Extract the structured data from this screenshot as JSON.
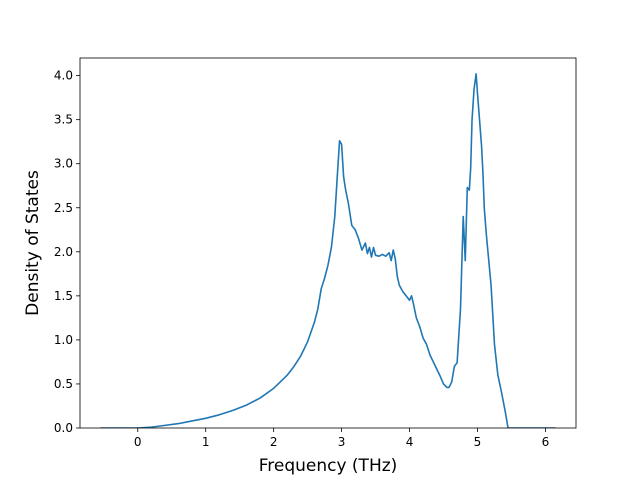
{
  "chart_data": {
    "type": "line",
    "title": "",
    "xlabel": "Frequency (THz)",
    "ylabel": "Density of States",
    "xlim": [
      -0.85,
      6.45
    ],
    "ylim": [
      0,
      4.2
    ],
    "xticks": [
      0,
      1,
      2,
      3,
      4,
      5,
      6
    ],
    "xtick_labels": [
      "0",
      "1",
      "2",
      "3",
      "4",
      "5",
      "6"
    ],
    "yticks": [
      0,
      0.5,
      1.0,
      1.5,
      2.0,
      2.5,
      3.0,
      3.5,
      4.0
    ],
    "ytick_labels": [
      "0.0",
      "0.5",
      "1.0",
      "1.5",
      "2.0",
      "2.5",
      "3.0",
      "3.5",
      "4.0"
    ],
    "grid": false,
    "legend": "none",
    "series": [
      {
        "color": "#1f77b4",
        "x": [
          -0.55,
          0.0,
          0.2,
          0.4,
          0.6,
          0.8,
          1.0,
          1.2,
          1.4,
          1.6,
          1.8,
          2.0,
          2.2,
          2.3,
          2.4,
          2.5,
          2.6,
          2.65,
          2.7,
          2.75,
          2.8,
          2.85,
          2.9,
          2.94,
          2.97,
          3.0,
          3.03,
          3.06,
          3.1,
          3.15,
          3.2,
          3.25,
          3.3,
          3.35,
          3.38,
          3.41,
          3.44,
          3.47,
          3.5,
          3.55,
          3.6,
          3.65,
          3.7,
          3.73,
          3.76,
          3.79,
          3.82,
          3.85,
          3.9,
          3.95,
          4.0,
          4.03,
          4.06,
          4.1,
          4.15,
          4.2,
          4.25,
          4.3,
          4.35,
          4.4,
          4.45,
          4.5,
          4.55,
          4.58,
          4.62,
          4.66,
          4.7,
          4.75,
          4.79,
          4.82,
          4.85,
          4.88,
          4.9,
          4.92,
          4.95,
          4.98,
          5.0,
          5.03,
          5.06,
          5.08,
          5.1,
          5.13,
          5.16,
          5.2,
          5.25,
          5.3,
          5.35,
          5.38,
          5.41,
          5.45,
          5.5,
          5.55,
          5.6,
          5.65,
          5.7,
          5.8,
          5.9,
          6.0,
          6.1,
          6.15
        ],
        "y": [
          0.0,
          0.0,
          0.01,
          0.03,
          0.05,
          0.08,
          0.11,
          0.15,
          0.2,
          0.26,
          0.34,
          0.45,
          0.6,
          0.7,
          0.82,
          0.98,
          1.2,
          1.35,
          1.58,
          1.7,
          1.85,
          2.05,
          2.4,
          2.9,
          3.26,
          3.22,
          2.85,
          2.7,
          2.55,
          2.3,
          2.25,
          2.15,
          2.02,
          2.1,
          1.98,
          2.05,
          1.94,
          2.05,
          1.96,
          1.95,
          1.97,
          1.95,
          1.99,
          1.9,
          2.02,
          1.92,
          1.72,
          1.62,
          1.55,
          1.5,
          1.45,
          1.5,
          1.4,
          1.25,
          1.15,
          1.02,
          0.95,
          0.83,
          0.75,
          0.67,
          0.59,
          0.5,
          0.46,
          0.46,
          0.52,
          0.7,
          0.74,
          1.35,
          2.4,
          1.9,
          2.73,
          2.7,
          2.95,
          3.5,
          3.85,
          4.02,
          3.8,
          3.5,
          3.2,
          2.9,
          2.5,
          2.2,
          1.95,
          1.62,
          0.95,
          0.6,
          0.42,
          0.3,
          0.18,
          0.0,
          0.0,
          0.0,
          0.0,
          0.0,
          0.0,
          0.0,
          0.0,
          0.0,
          0.0,
          0.0
        ]
      }
    ]
  }
}
